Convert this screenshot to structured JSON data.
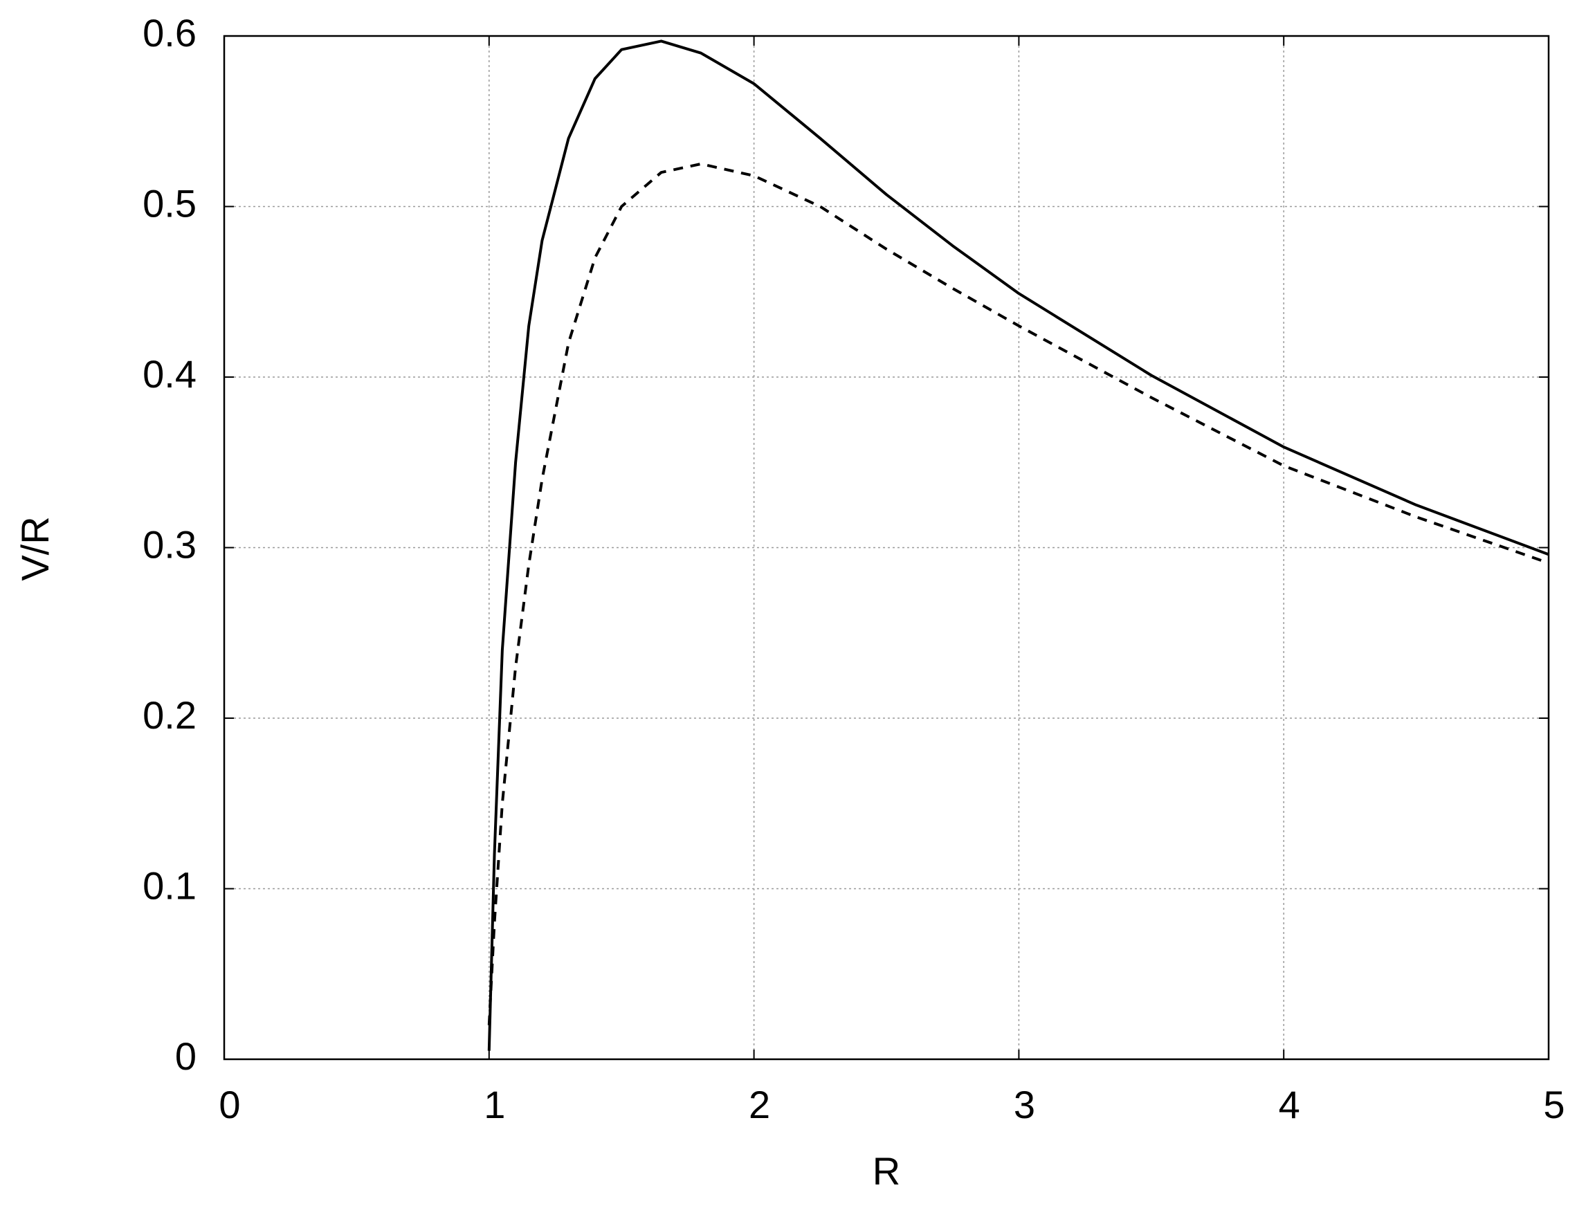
{
  "chart_data": {
    "type": "line",
    "x_label": "R",
    "y_label": "V/R",
    "x": [
      1,
      1.02,
      1.05,
      1.1,
      1.15,
      1.2,
      1.3,
      1.4,
      1.5,
      1.65,
      1.8,
      2,
      2.25,
      2.5,
      2.75,
      3,
      3.5,
      4,
      4.5,
      5
    ],
    "series": [
      {
        "color": "#000000",
        "dash": "solid",
        "values": [
          0.005,
          0.12,
          0.24,
          0.35,
          0.43,
          0.48,
          0.54,
          0.575,
          0.592,
          0.597,
          0.59,
          0.572,
          0.54,
          0.507,
          0.477,
          0.449,
          0.401,
          0.359,
          0.325,
          0.296
        ]
      },
      {
        "color": "#000000",
        "dash": "dashed",
        "values": [
          0.02,
          0.08,
          0.15,
          0.23,
          0.29,
          0.34,
          0.42,
          0.47,
          0.5,
          0.52,
          0.525,
          0.518,
          0.5,
          0.475,
          0.452,
          0.43,
          0.388,
          0.348,
          0.318,
          0.291
        ]
      }
    ],
    "xlim": [
      0,
      5
    ],
    "xticks": [
      0,
      1,
      2,
      3,
      4,
      5
    ],
    "ylim": [
      0,
      0.6
    ],
    "yticks": [
      0,
      0.1,
      0.2,
      0.3,
      0.4,
      0.5,
      0.6
    ],
    "grid": true
  }
}
